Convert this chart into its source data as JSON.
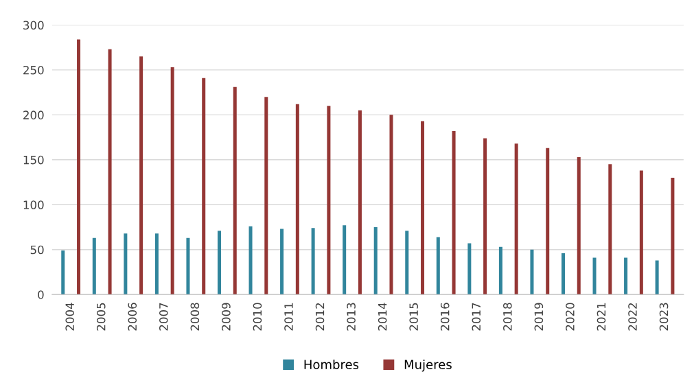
{
  "chart_data": {
    "type": "bar",
    "categories": [
      "2004",
      "2005",
      "2006",
      "2007",
      "2008",
      "2009",
      "2010",
      "2011",
      "2012",
      "2013",
      "2014",
      "2015",
      "2016",
      "2017",
      "2018",
      "2019",
      "2020",
      "2021",
      "2022",
      "2023"
    ],
    "series": [
      {
        "name": "Hombres",
        "color": "#31859c",
        "values": [
          49,
          63,
          68,
          68,
          63,
          71,
          76,
          73,
          74,
          77,
          75,
          71,
          64,
          57,
          53,
          50,
          46,
          41,
          41,
          38
        ]
      },
      {
        "name": "Mujeres",
        "color": "#953735",
        "values": [
          284,
          273,
          265,
          253,
          241,
          231,
          220,
          212,
          210,
          205,
          200,
          193,
          182,
          174,
          168,
          163,
          153,
          145,
          138,
          130
        ]
      }
    ],
    "ylim": [
      0,
      300
    ],
    "yticks": [
      0,
      50,
      100,
      150,
      200,
      250,
      300
    ],
    "grid": "y",
    "legend": "bottom"
  }
}
